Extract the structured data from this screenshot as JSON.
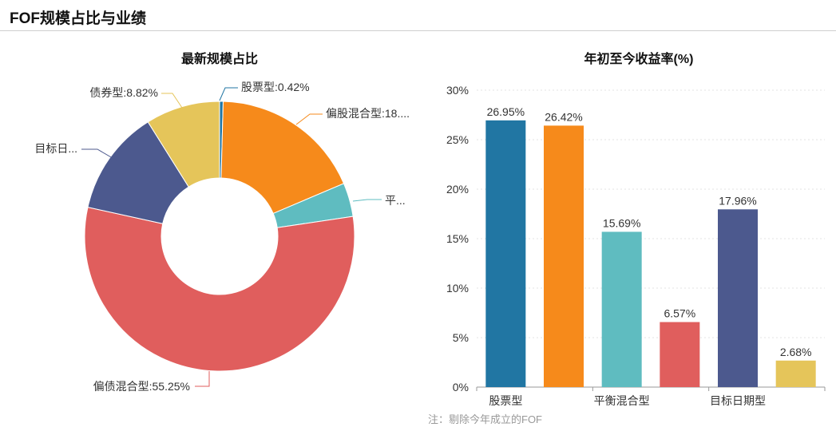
{
  "header": {
    "title": "FOF规模占比与业绩"
  },
  "note": "注：剔除今年成立的FOF",
  "colors": {
    "stock": "#2176a3",
    "partial_stock": "#f68a1b",
    "balanced": "#5fbcc0",
    "partial_bond": "#e05e5d",
    "target_date": "#4c598e",
    "bond": "#e5c55a"
  },
  "chart_data": [
    {
      "type": "pie",
      "title": "最新规模占比",
      "slices": [
        {
          "name": "股票型",
          "value": 0.42,
          "label": "股票型:0.42%",
          "color": "#2176a3"
        },
        {
          "name": "偏股混合型",
          "value": 18.0,
          "label": "偏股混合型:18....",
          "color": "#f68a1b"
        },
        {
          "name": "平衡混合型",
          "value": 4.0,
          "label": "平...",
          "color": "#5fbcc0"
        },
        {
          "name": "偏债混合型",
          "value": 55.25,
          "label": "偏债混合型:55.25%",
          "color": "#e05e5d"
        },
        {
          "name": "目标日期型",
          "value": 12.51,
          "label": "目标日...",
          "color": "#4c598e"
        },
        {
          "name": "债券型",
          "value": 8.82,
          "label": "债券型:8.82%",
          "color": "#e5c55a"
        }
      ]
    },
    {
      "type": "bar",
      "title": "年初至今收益率(%)",
      "categories": [
        "股票型",
        "偏股混合型",
        "平衡混合型",
        "偏债混合型",
        "目标日期型",
        "债券型"
      ],
      "category_tick_labels": [
        "股票型",
        "",
        "平衡混合型",
        "",
        "目标日期型",
        ""
      ],
      "values": [
        26.95,
        26.42,
        15.69,
        6.57,
        17.96,
        2.68
      ],
      "value_labels": [
        "26.95%",
        "26.42%",
        "15.69%",
        "6.57%",
        "17.96%",
        "2.68%"
      ],
      "colors": [
        "#2176a3",
        "#f68a1b",
        "#5fbcc0",
        "#e05e5d",
        "#4c598e",
        "#e5c55a"
      ],
      "ylim": [
        0,
        30
      ],
      "yticks": [
        "0%",
        "5%",
        "10%",
        "15%",
        "20%",
        "25%",
        "30%"
      ],
      "grid": true
    }
  ]
}
